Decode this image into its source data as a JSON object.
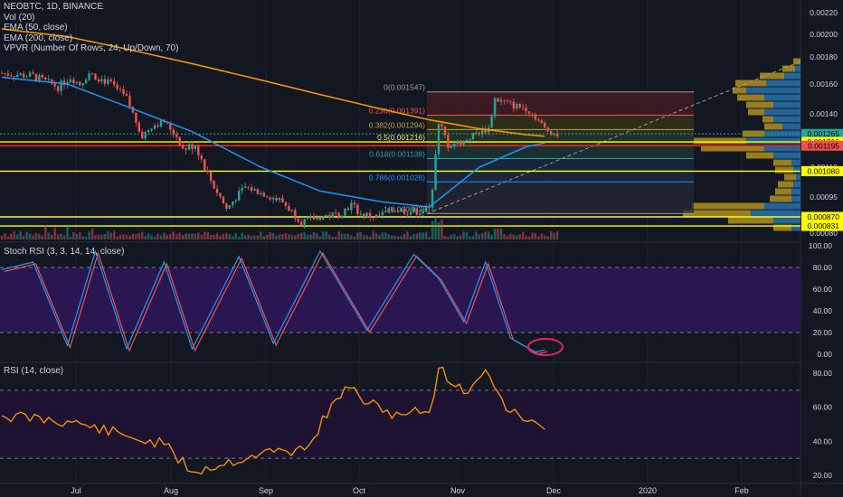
{
  "symbol_title": "NEOBTC, 1D, BINANCE",
  "indicators": [
    "Vol (20)",
    "EMA (50, close)",
    "EMA (200, close)",
    "VPVR (Number Of Rows, 24, Up/Down, 70)"
  ],
  "stoch_title": "Stoch RSI (3, 3, 14, 14, close)",
  "rsi_title": "RSI (14, close)",
  "colors": {
    "background": "#131722",
    "up": "#26a69a",
    "down": "#ef5350",
    "ema50": "#2196f3",
    "ema200": "#ff9800",
    "stoch_k": "#2196f3",
    "stoch_d": "#ef5350",
    "stoch_band": "#2a1650",
    "rsi_line": "#ff9800",
    "rsi_band": "#1e1232",
    "hline_yellow": "#ffff00",
    "hline_red": "#ff2222",
    "vpvr_up": "#2878b8",
    "vpvr_down": "#c6a11e",
    "annotation": "#e91e63"
  },
  "time_axis": [
    "Jul",
    "Aug",
    "Sep",
    "Oct",
    "Nov",
    "Dec",
    "2020",
    "Feb"
  ],
  "price_axis_ticks": [
    "0.00220",
    "0.00200",
    "0.00180",
    "0.00160",
    "0.00140",
    "0.00120",
    "0.00110",
    "0.00095",
    "0.00080"
  ],
  "price_tags": [
    {
      "text": "0.001265",
      "color": "#26a69a"
    },
    {
      "text": "0.001216",
      "color": "#ffff00"
    },
    {
      "text": "0.001195",
      "color": "#ef5350"
    },
    {
      "text": "0.001080",
      "color": "#ffff00"
    },
    {
      "text": "0.000870",
      "color": "#ffff00"
    },
    {
      "text": "0.000831",
      "color": "#ffff00"
    }
  ],
  "fib_levels": [
    {
      "label": "0(0.001547)",
      "value": 0.001547,
      "color": "#9b9b9b"
    },
    {
      "label": "0.236(0.001391)",
      "value": 0.001391,
      "color": "#ef5350"
    },
    {
      "label": "0.382(0.001294)",
      "value": 0.001294,
      "color": "#b5a642"
    },
    {
      "label": "0.5(0.001216)",
      "value": 0.001216,
      "color": "#ffeb3b"
    },
    {
      "label": "0.618(0.001138)",
      "value": 0.001138,
      "color": "#26a69a"
    },
    {
      "label": "0.786(0.001026)",
      "value": 0.001026,
      "color": "#2196f3"
    },
    {
      "label": "1(0.000883)",
      "value": 0.000883,
      "color": "#9b9b9b"
    }
  ],
  "stoch_axis_ticks": [
    "100.00",
    "80.00",
    "60.00",
    "40.00",
    "20.00",
    "0.00"
  ],
  "rsi_axis_ticks": [
    "80.00",
    "60.00",
    "40.00",
    "20.00"
  ],
  "chart_data": {
    "type": "line",
    "series": [
      {
        "name": "EMA (50, close)",
        "x": [
          "Jun 10",
          "Jul 1",
          "Jul 20",
          "Aug 10",
          "Sep 1",
          "Sep 20",
          "Oct 10",
          "Oct 25",
          "Nov 10",
          "Nov 25",
          "Dec 1"
        ],
        "values": [
          0.00165,
          0.0016,
          0.00145,
          0.00128,
          0.0011,
          0.00098,
          0.00093,
          0.00091,
          0.0011,
          0.00119,
          0.00121
        ]
      },
      {
        "name": "EMA (200, close)",
        "x": [
          "Jun 10",
          "Jul 1",
          "Jul 20",
          "Aug 10",
          "Sep 1",
          "Sep 20",
          "Oct 10",
          "Oct 25",
          "Nov 10",
          "Nov 25",
          "Dec 1"
        ],
        "values": [
          0.00205,
          0.00198,
          0.00187,
          0.00175,
          0.00163,
          0.00153,
          0.00143,
          0.00136,
          0.0013,
          0.00126,
          0.00125
        ]
      },
      {
        "name": "RSI (14, close)",
        "x": [
          "Jun 10",
          "Jul 1",
          "Jul 20",
          "Aug 1",
          "Aug 10",
          "Sep 1",
          "Sep 15",
          "Sep 28",
          "Oct 10",
          "Oct 25",
          "Oct 28",
          "Nov 5",
          "Nov 12",
          "Nov 20",
          "Dec 1"
        ],
        "values": [
          55,
          52,
          43,
          38,
          22,
          33,
          35,
          72,
          57,
          57,
          83,
          68,
          82,
          57,
          47
        ]
      },
      {
        "name": "Stoch RSI",
        "x": [
          "Jun 10",
          "Jun 20",
          "Jul 1",
          "Jul 10",
          "Jul 20",
          "Aug 1",
          "Aug 10",
          "Aug 25",
          "Sep 5",
          "Sep 20",
          "Oct 5",
          "Oct 20",
          "Oct 28",
          "Nov 5",
          "Nov 12",
          "Nov 20",
          "Nov 28",
          "Dec 1"
        ],
        "values": [
          78,
          85,
          8,
          95,
          5,
          85,
          5,
          90,
          10,
          95,
          22,
          92,
          70,
          30,
          85,
          15,
          2,
          4
        ]
      }
    ],
    "ylim": [
      0.00075,
      0.00225
    ],
    "hlines": [
      0.001216,
      0.001195,
      0.00108,
      0.00087,
      0.000831
    ]
  }
}
